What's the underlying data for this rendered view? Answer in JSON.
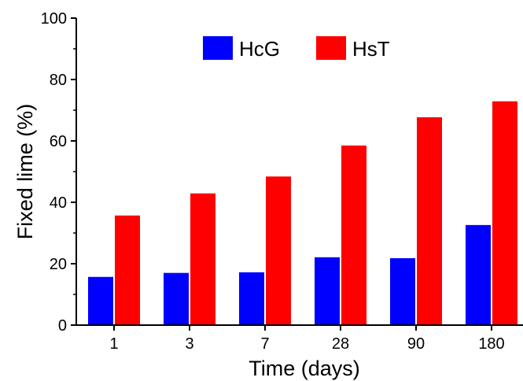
{
  "chart_data": {
    "type": "bar",
    "categories": [
      "1",
      "3",
      "7",
      "28",
      "90",
      "180"
    ],
    "series": [
      {
        "name": "HcG",
        "values": [
          15.7,
          17.0,
          17.2,
          22.1,
          21.8,
          32.6
        ]
      },
      {
        "name": "HsT",
        "values": [
          35.7,
          42.9,
          48.4,
          58.5,
          67.7,
          72.9
        ]
      }
    ],
    "xlabel": "Time (days)",
    "ylabel": "Fixed lime (%)",
    "ylim": [
      0,
      100
    ],
    "yticks": [
      "0",
      "20",
      "40",
      "60",
      "80",
      "100"
    ],
    "legend_position": "top-center",
    "grid": false
  },
  "colors": {
    "HcG": "#0000ff",
    "HsT": "#ff0000",
    "axis": "#000000"
  }
}
